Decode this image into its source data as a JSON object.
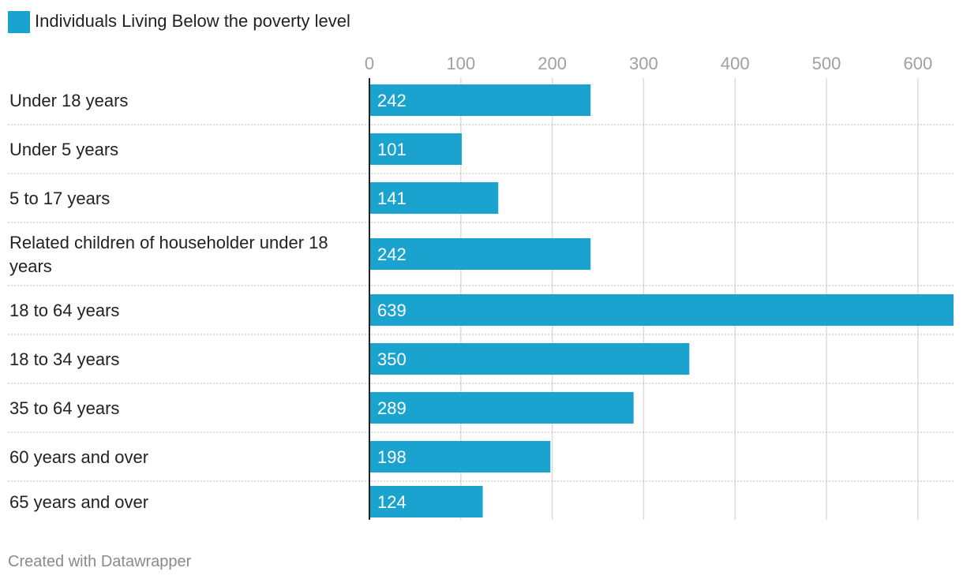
{
  "chart_data": {
    "type": "bar",
    "orientation": "horizontal",
    "legend": [
      {
        "name": "Individuals Living Below the poverty level",
        "color": "#1ba3cf"
      }
    ],
    "categories": [
      "Under 18 years",
      "Under 5 years",
      "5 to 17 years",
      "Related children of householder under 18 years",
      "18 to 64 years",
      "18 to 34 years",
      "35 to 64 years",
      "60 years and over",
      "65 years and over"
    ],
    "series": [
      {
        "name": "Individuals Living Below the poverty level",
        "values": [
          242,
          101,
          141,
          242,
          639,
          350,
          289,
          198,
          124
        ]
      }
    ],
    "value_labels": [
      "242",
      "101",
      "141",
      "242",
      "639",
      "350",
      "289",
      "198",
      "124"
    ],
    "xlim": [
      0,
      639
    ],
    "xticks": [
      0,
      100,
      200,
      300,
      400,
      500,
      600
    ],
    "xtick_labels": [
      "0",
      "100",
      "200",
      "300",
      "400",
      "500",
      "600"
    ],
    "grid": true,
    "legend_position": "top-left"
  },
  "footer": {
    "credit": "Created with Datawrapper"
  }
}
